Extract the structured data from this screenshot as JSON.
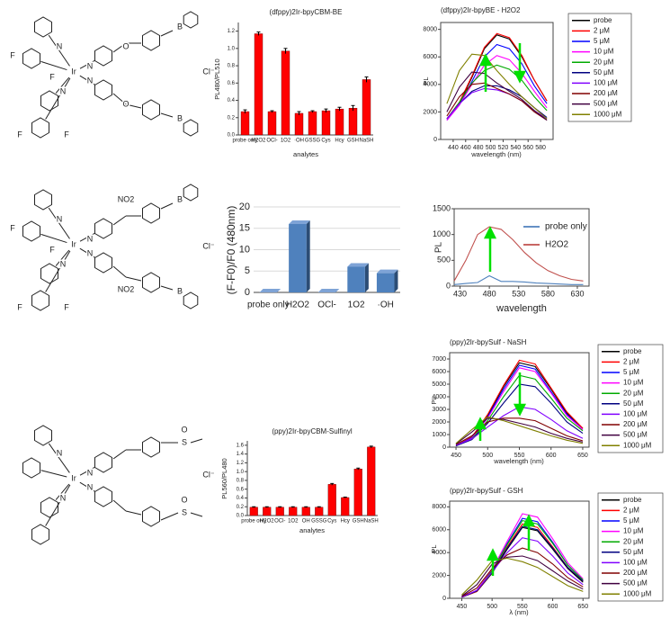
{
  "structures": [
    {
      "labels": [
        "Ir",
        "F",
        "F",
        "F",
        "F",
        "N",
        "N",
        "N",
        "N",
        "O",
        "O",
        "B",
        "B",
        "Cl⁻"
      ]
    },
    {
      "labels": [
        "Ir",
        "F",
        "F",
        "F",
        "F",
        "N",
        "N",
        "N",
        "N",
        "NO2",
        "NO2",
        "B",
        "B",
        "Cl⁻"
      ]
    },
    {
      "labels": [
        "Ir",
        "N",
        "N",
        "N",
        "N",
        "S",
        "S",
        "O",
        "O",
        "Cl⁻"
      ]
    }
  ],
  "chart_data": [
    {
      "type": "bar",
      "title": "(dfppy)2Ir-bpyCBM-BE",
      "xlabel": "analytes",
      "ylabel": "PL480/PL510",
      "categories": [
        "probe only",
        "H2O2",
        "OCl-",
        "1O2",
        "·OH",
        "GSSG",
        "Cys",
        "Hcy",
        "GSH",
        "NaSH"
      ],
      "values": [
        0.27,
        1.17,
        0.27,
        0.97,
        0.25,
        0.27,
        0.28,
        0.3,
        0.31,
        0.64
      ],
      "errors": [
        0.02,
        0.02,
        0.01,
        0.03,
        0.02,
        0.01,
        0.02,
        0.02,
        0.03,
        0.03
      ],
      "color": "#ff0000",
      "ylim": [
        0,
        1.3
      ],
      "yticks": [
        {
          "value": 0,
          "label": "0.0"
        },
        0.2,
        0.4,
        0.6,
        0.8,
        {
          "value": 1,
          "label": "1.0"
        },
        1.2
      ]
    },
    {
      "type": "bar",
      "ylabel": "(F-F0)/F0 (480nm)",
      "categories": [
        "probe only",
        "H2O2",
        "OCl-",
        "1O2",
        "·OH"
      ],
      "values": [
        0,
        16,
        0,
        6,
        4.5
      ],
      "color": "#4f81bd",
      "bar_style": "3d",
      "grid": true,
      "ylim": [
        0,
        20
      ],
      "yticks": [
        0,
        5,
        10,
        15,
        20
      ]
    },
    {
      "type": "bar",
      "title": "(ppy)2Ir-bpyCBM-Sulfinyl",
      "xlabel": "analytes",
      "ylabel": "PL560/PL480",
      "categories": [
        "probe only",
        "H2O2",
        "OCl-",
        "1O2",
        "OH",
        "GSSG",
        "Cys",
        "Hcy",
        "GSH",
        "NaSH"
      ],
      "values": [
        0.19,
        0.19,
        0.19,
        0.19,
        0.19,
        0.19,
        0.71,
        0.41,
        1.06,
        1.56
      ],
      "errors": [
        0.01,
        0.01,
        0.01,
        0.01,
        0.01,
        0.01,
        0.02,
        0.01,
        0.02,
        0.02
      ],
      "color": "#ff0000",
      "ylim": [
        0,
        1.7
      ],
      "yticks": [
        {
          "value": 0,
          "label": "0.0"
        },
        0.2,
        0.4,
        0.6,
        0.8,
        {
          "value": 1,
          "label": "1.0"
        },
        1.2,
        1.4,
        1.6
      ]
    },
    {
      "type": "line",
      "title": "(dfppy)2Ir-bpyBE - H2O2",
      "xlabel": "wavelength (nm)",
      "ylabel": "PL",
      "legend": "outside right",
      "x": [
        430,
        450,
        470,
        490,
        510,
        530,
        550,
        570,
        590
      ],
      "xlim": [
        420,
        600
      ],
      "xticks": [
        440,
        460,
        480,
        500,
        520,
        540,
        560,
        580
      ],
      "ylim": [
        0,
        8500
      ],
      "yticks": [
        0,
        2000,
        4000,
        6000,
        8000
      ],
      "series": [
        {
          "name": "probe",
          "color": "#000000",
          "values": [
            1500,
            2600,
            4500,
            6600,
            7600,
            7300,
            6000,
            4300,
            2800
          ]
        },
        {
          "name": "2 μM",
          "color": "#ff0000",
          "values": [
            1500,
            2700,
            4600,
            6700,
            7700,
            7400,
            6100,
            4300,
            2800
          ]
        },
        {
          "name": "5 μM",
          "color": "#0000ff",
          "values": [
            1400,
            2500,
            4200,
            6000,
            6900,
            6600,
            5500,
            3900,
            2600
          ]
        },
        {
          "name": "10 μM",
          "color": "#ff00ff",
          "values": [
            1400,
            2500,
            4000,
            5400,
            6100,
            5800,
            4800,
            3500,
            2300
          ]
        },
        {
          "name": "20 μM",
          "color": "#00aa00",
          "values": [
            1500,
            2700,
            4100,
            5000,
            5400,
            5100,
            4300,
            3100,
            2100
          ]
        },
        {
          "name": "50 μM",
          "color": "#000080",
          "values": [
            1500,
            2600,
            3500,
            3900,
            3900,
            3600,
            3100,
            2300,
            1600
          ]
        },
        {
          "name": "100 μM",
          "color": "#8000ff",
          "values": [
            1500,
            2600,
            3400,
            3700,
            3600,
            3300,
            2800,
            2100,
            1500
          ]
        },
        {
          "name": "200 μM",
          "color": "#800000",
          "values": [
            1700,
            3100,
            4000,
            4100,
            3700,
            3300,
            2800,
            2000,
            1400
          ]
        },
        {
          "name": "500 μM",
          "color": "#400040",
          "values": [
            2000,
            3800,
            4900,
            4800,
            4100,
            3500,
            2900,
            2100,
            1400
          ]
        },
        {
          "name": "1000 μM",
          "color": "#808000",
          "values": [
            2600,
            5000,
            6200,
            6100,
            5000,
            4000,
            3100,
            2300,
            1500
          ]
        }
      ]
    },
    {
      "type": "line",
      "xlabel": "wavelength",
      "ylabel": "PL",
      "legend": "upper right",
      "x": [
        420,
        440,
        460,
        480,
        500,
        520,
        540,
        560,
        580,
        600,
        620,
        640
      ],
      "xlim": [
        420,
        650
      ],
      "xticks": [
        430,
        480,
        530,
        580,
        630
      ],
      "ylim": [
        0,
        1500
      ],
      "yticks": [
        0,
        500,
        1000,
        1500
      ],
      "series": [
        {
          "name": "probe only",
          "color": "#4f81bd",
          "values": [
            30,
            50,
            70,
            200,
            90,
            90,
            80,
            60,
            50,
            40,
            30,
            30
          ]
        },
        {
          "name": "H2O2",
          "color": "#c0504d",
          "values": [
            100,
            500,
            1000,
            1150,
            1100,
            900,
            650,
            450,
            300,
            200,
            130,
            100
          ]
        }
      ]
    },
    {
      "type": "line",
      "title": "(ppy)2Ir-bpySulf - NaSH",
      "xlabel": "wavelength (nm)",
      "ylabel": "PL",
      "legend": "outside right",
      "x": [
        450,
        475,
        500,
        525,
        550,
        575,
        600,
        625,
        650
      ],
      "xlim": [
        440,
        660
      ],
      "xticks": [
        450,
        500,
        550,
        600,
        650
      ],
      "ylim": [
        0,
        7500
      ],
      "yticks": [
        0,
        1000,
        2000,
        3000,
        4000,
        5000,
        6000,
        7000
      ],
      "series": [
        {
          "name": "probe",
          "color": "#000000",
          "values": [
            100,
            800,
            2500,
            4800,
            6700,
            6400,
            4600,
            2700,
            1500
          ]
        },
        {
          "name": "2 μM",
          "color": "#ff0000",
          "values": [
            100,
            800,
            2600,
            4900,
            6900,
            6600,
            4700,
            2800,
            1500
          ]
        },
        {
          "name": "5 μM",
          "color": "#0000ff",
          "values": [
            100,
            750,
            2400,
            4600,
            6500,
            6200,
            4400,
            2600,
            1400
          ]
        },
        {
          "name": "10 μM",
          "color": "#ff00ff",
          "values": [
            100,
            700,
            2300,
            4400,
            6300,
            6000,
            4300,
            2500,
            1400
          ]
        },
        {
          "name": "20 μM",
          "color": "#00aa00",
          "values": [
            100,
            650,
            2100,
            4000,
            5700,
            5400,
            3900,
            2300,
            1300
          ]
        },
        {
          "name": "50 μM",
          "color": "#000080",
          "values": [
            100,
            600,
            1900,
            3500,
            5000,
            4800,
            3500,
            2000,
            1100
          ]
        },
        {
          "name": "100 μM",
          "color": "#8000ff",
          "values": [
            150,
            650,
            1600,
            2500,
            3200,
            3000,
            2200,
            1300,
            700
          ]
        },
        {
          "name": "200 μM",
          "color": "#800000",
          "values": [
            200,
            900,
            2000,
            2300,
            2300,
            2100,
            1500,
            900,
            500
          ]
        },
        {
          "name": "500 μM",
          "color": "#400040",
          "values": [
            250,
            1200,
            2300,
            2200,
            1900,
            1600,
            1100,
            700,
            400
          ]
        },
        {
          "name": "1000 μM",
          "color": "#808000",
          "values": [
            300,
            1400,
            2400,
            2100,
            1700,
            1300,
            900,
            550,
            300
          ]
        }
      ]
    },
    {
      "type": "line",
      "title": "(ppy)2Ir-bpySulf - GSH",
      "xlabel": "λ (nm)",
      "ylabel": "PL",
      "legend": "outside right",
      "x": [
        450,
        475,
        500,
        525,
        550,
        575,
        600,
        625,
        650
      ],
      "xlim": [
        430,
        660
      ],
      "xticks": [
        450,
        500,
        550,
        600,
        650
      ],
      "ylim": [
        0,
        8500
      ],
      "yticks": [
        0,
        2000,
        4000,
        6000,
        8000
      ],
      "series": [
        {
          "name": "probe",
          "color": "#000000",
          "values": [
            100,
            600,
            2200,
            4300,
            6200,
            5900,
            4300,
            2600,
            1400
          ]
        },
        {
          "name": "2 μM",
          "color": "#ff0000",
          "values": [
            100,
            600,
            2300,
            4500,
            6500,
            6200,
            4500,
            2700,
            1500
          ]
        },
        {
          "name": "5 μM",
          "color": "#0000ff",
          "values": [
            100,
            650,
            2400,
            4800,
            7000,
            6700,
            4900,
            2900,
            1600
          ]
        },
        {
          "name": "10 μM",
          "color": "#ff00ff",
          "values": [
            100,
            700,
            2500,
            5000,
            7400,
            7100,
            5200,
            3100,
            1700
          ]
        },
        {
          "name": "20 μM",
          "color": "#00aa00",
          "values": [
            100,
            650,
            2400,
            4700,
            6800,
            6500,
            4800,
            2900,
            1600
          ]
        },
        {
          "name": "50 μM",
          "color": "#000080",
          "values": [
            100,
            650,
            2300,
            4400,
            6300,
            6000,
            4400,
            2700,
            1500
          ]
        },
        {
          "name": "100 μM",
          "color": "#8000ff",
          "values": [
            100,
            700,
            2300,
            4000,
            5300,
            5000,
            3700,
            2200,
            1200
          ]
        },
        {
          "name": "200 μM",
          "color": "#800000",
          "values": [
            150,
            900,
            2600,
            3800,
            4400,
            4000,
            3000,
            1800,
            1000
          ]
        },
        {
          "name": "500 μM",
          "color": "#400040",
          "values": [
            200,
            1200,
            3000,
            3600,
            3700,
            3300,
            2400,
            1500,
            800
          ]
        },
        {
          "name": "1000 μM",
          "color": "#808000",
          "values": [
            300,
            1600,
            3300,
            3500,
            3200,
            2700,
            1900,
            1100,
            600
          ]
        }
      ]
    }
  ]
}
